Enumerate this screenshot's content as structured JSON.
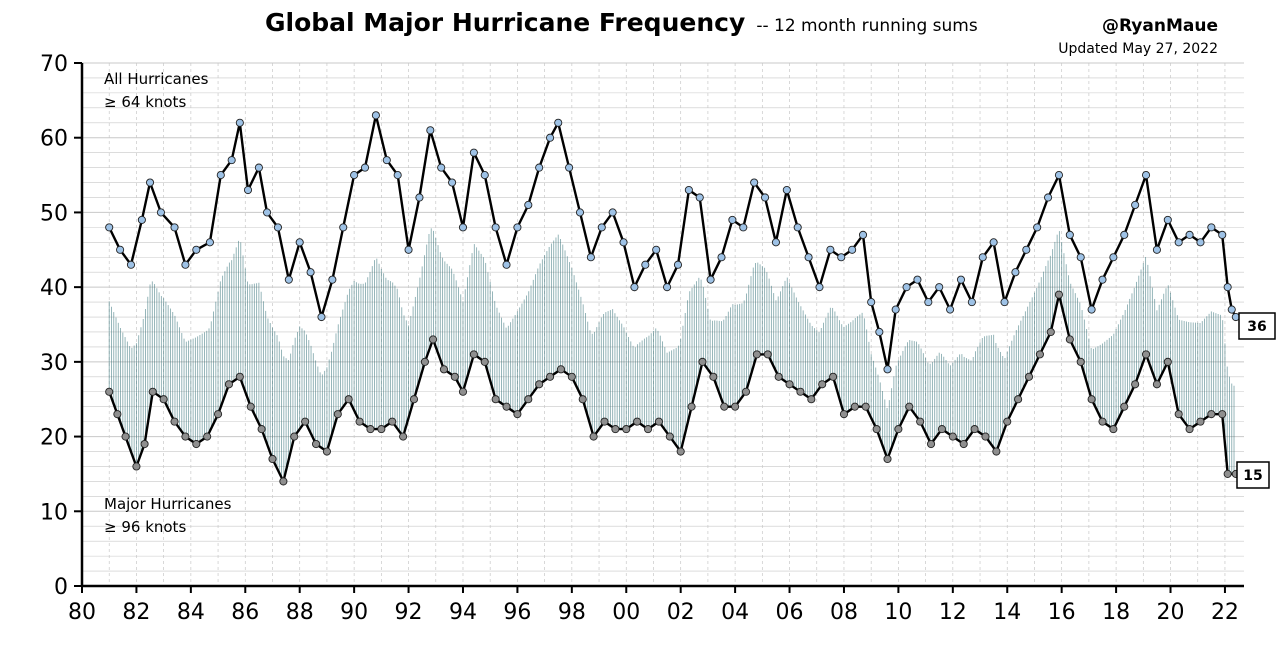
{
  "chart_data": {
    "type": "line",
    "title": "Global Major Hurricane Frequency",
    "subtitle": "-- 12 month running sums",
    "credit": "@RyanMaue",
    "updated": "Updated May 27, 2022",
    "xlabel": "",
    "ylabel": "",
    "xlim": [
      1980,
      2022.7
    ],
    "ylim": [
      0,
      70
    ],
    "grid": true,
    "x_ticks": [
      {
        "value": 1980,
        "label": "80"
      },
      {
        "value": 1982,
        "label": "82"
      },
      {
        "value": 1984,
        "label": "84"
      },
      {
        "value": 1986,
        "label": "86"
      },
      {
        "value": 1988,
        "label": "88"
      },
      {
        "value": 1990,
        "label": "90"
      },
      {
        "value": 1992,
        "label": "92"
      },
      {
        "value": 1994,
        "label": "94"
      },
      {
        "value": 1996,
        "label": "96"
      },
      {
        "value": 1998,
        "label": "98"
      },
      {
        "value": 2000,
        "label": "00"
      },
      {
        "value": 2002,
        "label": "02"
      },
      {
        "value": 2004,
        "label": "04"
      },
      {
        "value": 2006,
        "label": "06"
      },
      {
        "value": 2008,
        "label": "08"
      },
      {
        "value": 2010,
        "label": "10"
      },
      {
        "value": 2012,
        "label": "12"
      },
      {
        "value": 2014,
        "label": "14"
      },
      {
        "value": 2016,
        "label": "16"
      },
      {
        "value": 2018,
        "label": "18"
      },
      {
        "value": 2020,
        "label": "20"
      },
      {
        "value": 2022,
        "label": "22"
      }
    ],
    "y_ticks": [
      0,
      10,
      20,
      30,
      40,
      50,
      60,
      70
    ],
    "annotations": {
      "all_line1": "All Hurricanes",
      "all_line2": "≥ 64 knots",
      "major_line1": "Major Hurricanes",
      "major_line2": "≥ 96 knots"
    },
    "end_labels": {
      "all": "36",
      "major": "15"
    },
    "colors": {
      "all_marker": "#9ec2e6",
      "major_marker": "#8f8f8f",
      "all_fill": "#dce6fa",
      "major_fill": "#2b6b73",
      "line": "#000000",
      "grid": "#c8c8c8"
    },
    "series": [
      {
        "name": "All Hurricanes ≥ 64 knots",
        "points": [
          [
            1981.0,
            48
          ],
          [
            1981.4,
            45
          ],
          [
            1981.8,
            43
          ],
          [
            1982.2,
            49
          ],
          [
            1982.5,
            54
          ],
          [
            1982.9,
            50
          ],
          [
            1983.4,
            48
          ],
          [
            1983.8,
            43
          ],
          [
            1984.2,
            45
          ],
          [
            1984.7,
            46
          ],
          [
            1985.1,
            55
          ],
          [
            1985.5,
            57
          ],
          [
            1985.8,
            62
          ],
          [
            1986.1,
            53
          ],
          [
            1986.5,
            56
          ],
          [
            1986.8,
            50
          ],
          [
            1987.2,
            48
          ],
          [
            1987.6,
            41
          ],
          [
            1988.0,
            46
          ],
          [
            1988.4,
            42
          ],
          [
            1988.8,
            36
          ],
          [
            1989.2,
            41
          ],
          [
            1989.6,
            48
          ],
          [
            1990.0,
            55
          ],
          [
            1990.4,
            56
          ],
          [
            1990.8,
            63
          ],
          [
            1991.2,
            57
          ],
          [
            1991.6,
            55
          ],
          [
            1992.0,
            45
          ],
          [
            1992.4,
            52
          ],
          [
            1992.8,
            61
          ],
          [
            1993.2,
            56
          ],
          [
            1993.6,
            54
          ],
          [
            1994.0,
            48
          ],
          [
            1994.4,
            58
          ],
          [
            1994.8,
            55
          ],
          [
            1995.2,
            48
          ],
          [
            1995.6,
            43
          ],
          [
            1996.0,
            48
          ],
          [
            1996.4,
            51
          ],
          [
            1996.8,
            56
          ],
          [
            1997.2,
            60
          ],
          [
            1997.5,
            62
          ],
          [
            1997.9,
            56
          ],
          [
            1998.3,
            50
          ],
          [
            1998.7,
            44
          ],
          [
            1999.1,
            48
          ],
          [
            1999.5,
            50
          ],
          [
            1999.9,
            46
          ],
          [
            2000.3,
            40
          ],
          [
            2000.7,
            43
          ],
          [
            2001.1,
            45
          ],
          [
            2001.5,
            40
          ],
          [
            2001.9,
            43
          ],
          [
            2002.3,
            53
          ],
          [
            2002.7,
            52
          ],
          [
            2003.1,
            41
          ],
          [
            2003.5,
            44
          ],
          [
            2003.9,
            49
          ],
          [
            2004.3,
            48
          ],
          [
            2004.7,
            54
          ],
          [
            2005.1,
            52
          ],
          [
            2005.5,
            46
          ],
          [
            2005.9,
            53
          ],
          [
            2006.3,
            48
          ],
          [
            2006.7,
            44
          ],
          [
            2007.1,
            40
          ],
          [
            2007.5,
            45
          ],
          [
            2007.9,
            44
          ],
          [
            2008.3,
            45
          ],
          [
            2008.7,
            47
          ],
          [
            2009.0,
            38
          ],
          [
            2009.3,
            34
          ],
          [
            2009.6,
            29
          ],
          [
            2009.9,
            37
          ],
          [
            2010.3,
            40
          ],
          [
            2010.7,
            41
          ],
          [
            2011.1,
            38
          ],
          [
            2011.5,
            40
          ],
          [
            2011.9,
            37
          ],
          [
            2012.3,
            41
          ],
          [
            2012.7,
            38
          ],
          [
            2013.1,
            44
          ],
          [
            2013.5,
            46
          ],
          [
            2013.9,
            38
          ],
          [
            2014.3,
            42
          ],
          [
            2014.7,
            45
          ],
          [
            2015.1,
            48
          ],
          [
            2015.5,
            52
          ],
          [
            2015.9,
            55
          ],
          [
            2016.3,
            47
          ],
          [
            2016.7,
            44
          ],
          [
            2017.1,
            37
          ],
          [
            2017.5,
            41
          ],
          [
            2017.9,
            44
          ],
          [
            2018.3,
            47
          ],
          [
            2018.7,
            51
          ],
          [
            2019.1,
            55
          ],
          [
            2019.5,
            45
          ],
          [
            2019.9,
            49
          ],
          [
            2020.3,
            46
          ],
          [
            2020.7,
            47
          ],
          [
            2021.1,
            46
          ],
          [
            2021.5,
            48
          ],
          [
            2021.9,
            47
          ],
          [
            2022.1,
            40
          ],
          [
            2022.25,
            37
          ],
          [
            2022.4,
            36
          ]
        ]
      },
      {
        "name": "Major Hurricanes ≥ 96 knots",
        "points": [
          [
            1981.0,
            26
          ],
          [
            1981.3,
            23
          ],
          [
            1981.6,
            20
          ],
          [
            1982.0,
            16
          ],
          [
            1982.3,
            19
          ],
          [
            1982.6,
            26
          ],
          [
            1983.0,
            25
          ],
          [
            1983.4,
            22
          ],
          [
            1983.8,
            20
          ],
          [
            1984.2,
            19
          ],
          [
            1984.6,
            20
          ],
          [
            1985.0,
            23
          ],
          [
            1985.4,
            27
          ],
          [
            1985.8,
            28
          ],
          [
            1986.2,
            24
          ],
          [
            1986.6,
            21
          ],
          [
            1987.0,
            17
          ],
          [
            1987.4,
            14
          ],
          [
            1987.8,
            20
          ],
          [
            1988.2,
            22
          ],
          [
            1988.6,
            19
          ],
          [
            1989.0,
            18
          ],
          [
            1989.4,
            23
          ],
          [
            1989.8,
            25
          ],
          [
            1990.2,
            22
          ],
          [
            1990.6,
            21
          ],
          [
            1991.0,
            21
          ],
          [
            1991.4,
            22
          ],
          [
            1991.8,
            20
          ],
          [
            1992.2,
            25
          ],
          [
            1992.6,
            30
          ],
          [
            1992.9,
            33
          ],
          [
            1993.3,
            29
          ],
          [
            1993.7,
            28
          ],
          [
            1994.0,
            26
          ],
          [
            1994.4,
            31
          ],
          [
            1994.8,
            30
          ],
          [
            1995.2,
            25
          ],
          [
            1995.6,
            24
          ],
          [
            1996.0,
            23
          ],
          [
            1996.4,
            25
          ],
          [
            1996.8,
            27
          ],
          [
            1997.2,
            28
          ],
          [
            1997.6,
            29
          ],
          [
            1998.0,
            28
          ],
          [
            1998.4,
            25
          ],
          [
            1998.8,
            20
          ],
          [
            1999.2,
            22
          ],
          [
            1999.6,
            21
          ],
          [
            2000.0,
            21
          ],
          [
            2000.4,
            22
          ],
          [
            2000.8,
            21
          ],
          [
            2001.2,
            22
          ],
          [
            2001.6,
            20
          ],
          [
            2002.0,
            18
          ],
          [
            2002.4,
            24
          ],
          [
            2002.8,
            30
          ],
          [
            2003.2,
            28
          ],
          [
            2003.6,
            24
          ],
          [
            2004.0,
            24
          ],
          [
            2004.4,
            26
          ],
          [
            2004.8,
            31
          ],
          [
            2005.2,
            31
          ],
          [
            2005.6,
            28
          ],
          [
            2006.0,
            27
          ],
          [
            2006.4,
            26
          ],
          [
            2006.8,
            25
          ],
          [
            2007.2,
            27
          ],
          [
            2007.6,
            28
          ],
          [
            2008.0,
            23
          ],
          [
            2008.4,
            24
          ],
          [
            2008.8,
            24
          ],
          [
            2009.2,
            21
          ],
          [
            2009.6,
            17
          ],
          [
            2010.0,
            21
          ],
          [
            2010.4,
            24
          ],
          [
            2010.8,
            22
          ],
          [
            2011.2,
            19
          ],
          [
            2011.6,
            21
          ],
          [
            2012.0,
            20
          ],
          [
            2012.4,
            19
          ],
          [
            2012.8,
            21
          ],
          [
            2013.2,
            20
          ],
          [
            2013.6,
            18
          ],
          [
            2014.0,
            22
          ],
          [
            2014.4,
            25
          ],
          [
            2014.8,
            28
          ],
          [
            2015.2,
            31
          ],
          [
            2015.6,
            34
          ],
          [
            2015.9,
            39
          ],
          [
            2016.3,
            33
          ],
          [
            2016.7,
            30
          ],
          [
            2017.1,
            25
          ],
          [
            2017.5,
            22
          ],
          [
            2017.9,
            21
          ],
          [
            2018.3,
            24
          ],
          [
            2018.7,
            27
          ],
          [
            2019.1,
            31
          ],
          [
            2019.5,
            27
          ],
          [
            2019.9,
            30
          ],
          [
            2020.3,
            23
          ],
          [
            2020.7,
            21
          ],
          [
            2021.1,
            22
          ],
          [
            2021.5,
            23
          ],
          [
            2021.9,
            23
          ],
          [
            2022.1,
            15
          ],
          [
            2022.4,
            15
          ]
        ]
      }
    ]
  }
}
